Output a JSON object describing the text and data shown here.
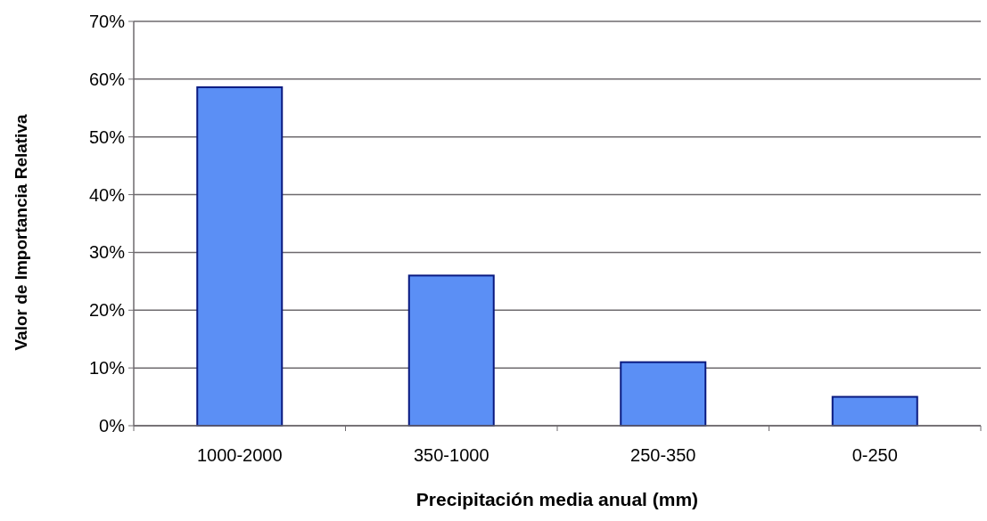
{
  "chart_data": {
    "type": "bar",
    "xlabel": "Precipitación media anual (mm)",
    "ylabel": "Valor de Importancia Relativa",
    "categories": [
      "1000-2000",
      "350-1000",
      "250-350",
      "0-250"
    ],
    "values": [
      58.6,
      26,
      11,
      5
    ],
    "color": "#5b8ff5",
    "ylim": [
      0,
      70
    ],
    "yticks": [
      {
        "value": 0,
        "label": "0%"
      },
      {
        "value": 10,
        "label": "10%"
      },
      {
        "value": 20,
        "label": "20%"
      },
      {
        "value": 30,
        "label": "30%"
      },
      {
        "value": 40,
        "label": "40%"
      },
      {
        "value": 50,
        "label": "50%"
      },
      {
        "value": 60,
        "label": "60%"
      },
      {
        "value": 70,
        "label": "70%"
      }
    ],
    "grid": "y"
  }
}
